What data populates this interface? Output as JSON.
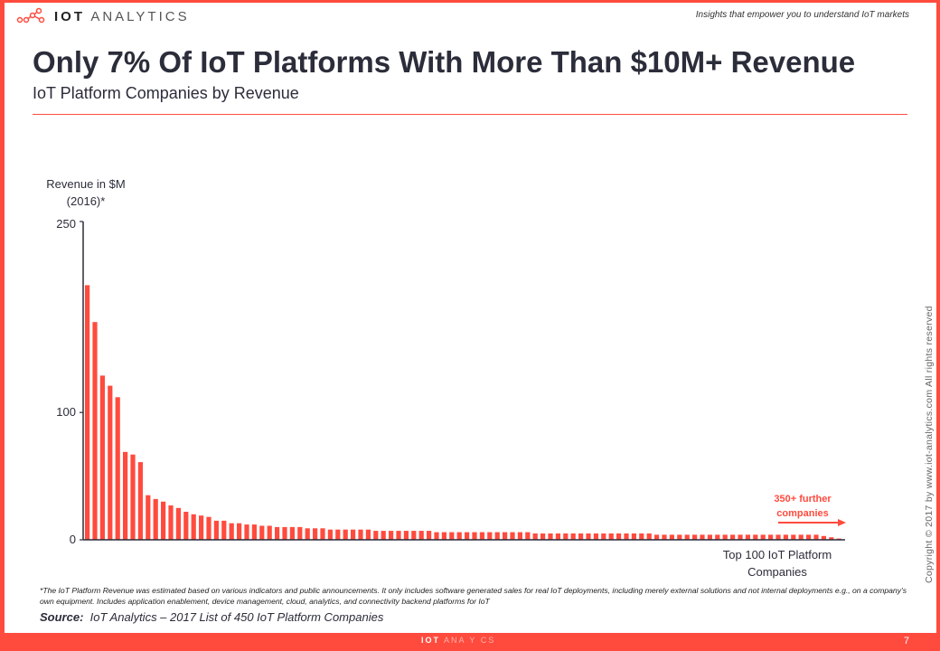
{
  "header": {
    "logo_text_bold": "IOT",
    "logo_text": "ANALYTICS",
    "tagline": "Insights that empower you to understand IoT markets"
  },
  "title": "Only 7% Of IoT Platforms With More Than $10M+ Revenue",
  "subtitle": "IoT Platform Companies by Revenue",
  "chart_data": {
    "type": "bar",
    "ylabel": "Revenue in $M (2016)*",
    "ylabel_lines": [
      "Revenue in $M",
      "(2016)*"
    ],
    "xlabel_lines": [
      "Top 100 IoT Platform",
      "Companies"
    ],
    "ylim": [
      0,
      250
    ],
    "yticks": [
      "0",
      "100",
      "250"
    ],
    "ytick_values": [
      0,
      100,
      250
    ],
    "grid": false,
    "color": "#ff4b3e",
    "annotation_lines": [
      "350+ further",
      "companies"
    ],
    "values": [
      200,
      171,
      129,
      121,
      112,
      69,
      67,
      61,
      35,
      32,
      30,
      27,
      25,
      22,
      20,
      19,
      18,
      15,
      15,
      13,
      13,
      12,
      12,
      11,
      11,
      10,
      10,
      10,
      10,
      9,
      9,
      9,
      8,
      8,
      8,
      8,
      8,
      8,
      7,
      7,
      7,
      7,
      7,
      7,
      7,
      7,
      6,
      6,
      6,
      6,
      6,
      6,
      6,
      6,
      6,
      6,
      6,
      6,
      6,
      5,
      5,
      5,
      5,
      5,
      5,
      5,
      5,
      5,
      5,
      5,
      5,
      5,
      5,
      5,
      5,
      4,
      4,
      4,
      4,
      4,
      4,
      4,
      4,
      4,
      4,
      4,
      4,
      4,
      4,
      4,
      4,
      4,
      4,
      4,
      4,
      4,
      4,
      3,
      2,
      1
    ]
  },
  "footnote": "*The IoT Platform Revenue was estimated based on various indicators and public announcements. It only includes software generated sales for real IoT deployments, including merely external solutions and not internal deployments e.g., on a company’s own equipment. Includes application enablement, device management, cloud, analytics, and connectivity backend platforms for IoT",
  "source_label": "Source:",
  "source_text": "IoT Analytics – 2017 List of 450 IoT Platform Companies",
  "copyright": "Copyright © 2017 by www.iot-analytics.com All rights reserved",
  "footer": {
    "logo_bold": "IOT",
    "logo_rest": "ANA Y  CS",
    "page_number": "7"
  }
}
